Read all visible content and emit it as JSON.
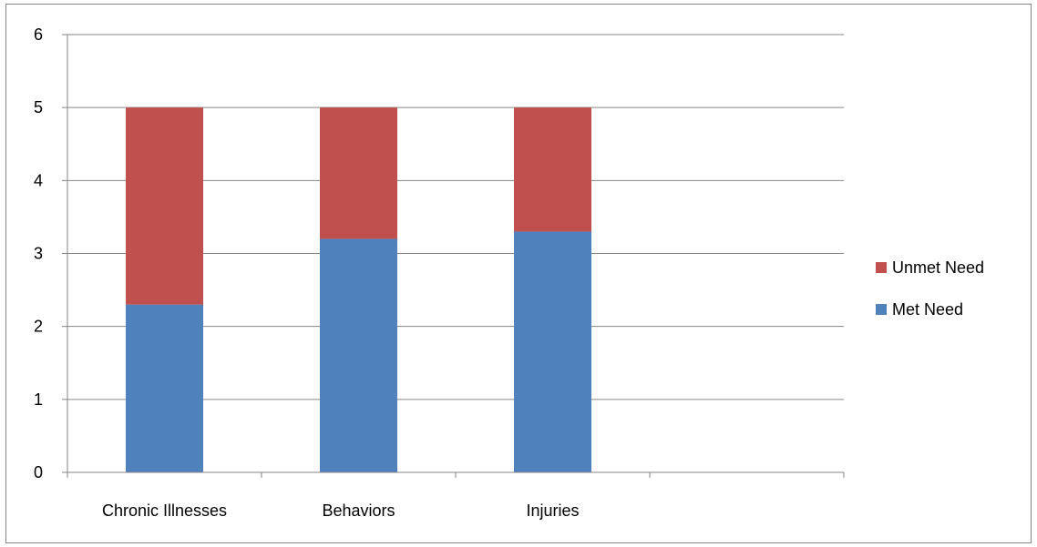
{
  "chart_data": {
    "type": "bar",
    "stacked": true,
    "categories": [
      "Chronic Illnesses",
      "Behaviors",
      "Injuries",
      ""
    ],
    "series": [
      {
        "name": "Met Need",
        "values": [
          2.3,
          3.2,
          3.3,
          null
        ],
        "color": "#4F81BD"
      },
      {
        "name": "Unmet Need",
        "values": [
          2.7,
          1.8,
          1.7,
          null
        ],
        "color": "#C0504D"
      }
    ],
    "ylim": [
      0,
      6
    ],
    "yticks": [
      0,
      1,
      2,
      3,
      4,
      5,
      6
    ],
    "grid": true,
    "legend_position": "right",
    "title": "",
    "xlabel": "",
    "ylabel": ""
  }
}
